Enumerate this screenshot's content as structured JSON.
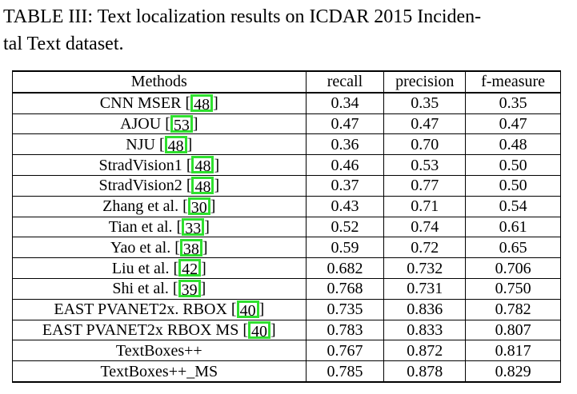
{
  "caption": {
    "line1": "TABLE III: Text localization results on ICDAR 2015 Inciden-",
    "line2": "tal Text dataset."
  },
  "table": {
    "headers": [
      "Methods",
      "recall",
      "precision",
      "f-measure"
    ],
    "rows": [
      {
        "method": "CNN MSER ",
        "ref": "48",
        "recall": "0.34",
        "precision": "0.35",
        "fmeasure": "0.35"
      },
      {
        "method": "AJOU ",
        "ref": "53",
        "recall": "0.47",
        "precision": "0.47",
        "fmeasure": "0.47"
      },
      {
        "method": "NJU ",
        "ref": "48",
        "recall": "0.36",
        "precision": "0.70",
        "fmeasure": "0.48"
      },
      {
        "method": "StradVision1 ",
        "ref": "48",
        "recall": "0.46",
        "precision": "0.53",
        "fmeasure": "0.50"
      },
      {
        "method": "StradVision2 ",
        "ref": "48",
        "recall": "0.37",
        "precision": "0.77",
        "fmeasure": "0.50"
      },
      {
        "method": "Zhang et al. ",
        "ref": "30",
        "recall": "0.43",
        "precision": "0.71",
        "fmeasure": "0.54"
      },
      {
        "method": "Tian et al. ",
        "ref": "33",
        "recall": "0.52",
        "precision": "0.74",
        "fmeasure": "0.61"
      },
      {
        "method": "Yao et al. ",
        "ref": "38",
        "recall": "0.59",
        "precision": "0.72",
        "fmeasure": "0.65"
      },
      {
        "method": "Liu et al. ",
        "ref": "42",
        "recall": "0.682",
        "precision": "0.732",
        "fmeasure": "0.706"
      },
      {
        "method": "Shi et al. ",
        "ref": "39",
        "recall": "0.768",
        "precision": "0.731",
        "fmeasure": "0.750"
      },
      {
        "method": "EAST PVANET2x. RBOX ",
        "ref": "40",
        "recall": "0.735",
        "precision": "0.836",
        "fmeasure": "0.782"
      },
      {
        "method": "EAST PVANET2x RBOX MS ",
        "ref": "40",
        "recall": "0.783",
        "precision": "0.833",
        "fmeasure": "0.807"
      },
      {
        "method": "TextBoxes++",
        "ref": "",
        "recall": "0.767",
        "precision": "0.872",
        "fmeasure": "0.817"
      },
      {
        "method": "TextBoxes++_MS",
        "ref": "",
        "recall": "0.785",
        "precision": "0.878",
        "fmeasure": "0.829"
      }
    ],
    "bold_cells": {
      "12": [
        "fmeasure"
      ],
      "13": [
        "recall",
        "precision",
        "fmeasure"
      ]
    }
  },
  "colors": {
    "reference_box": "#2ee02e"
  }
}
